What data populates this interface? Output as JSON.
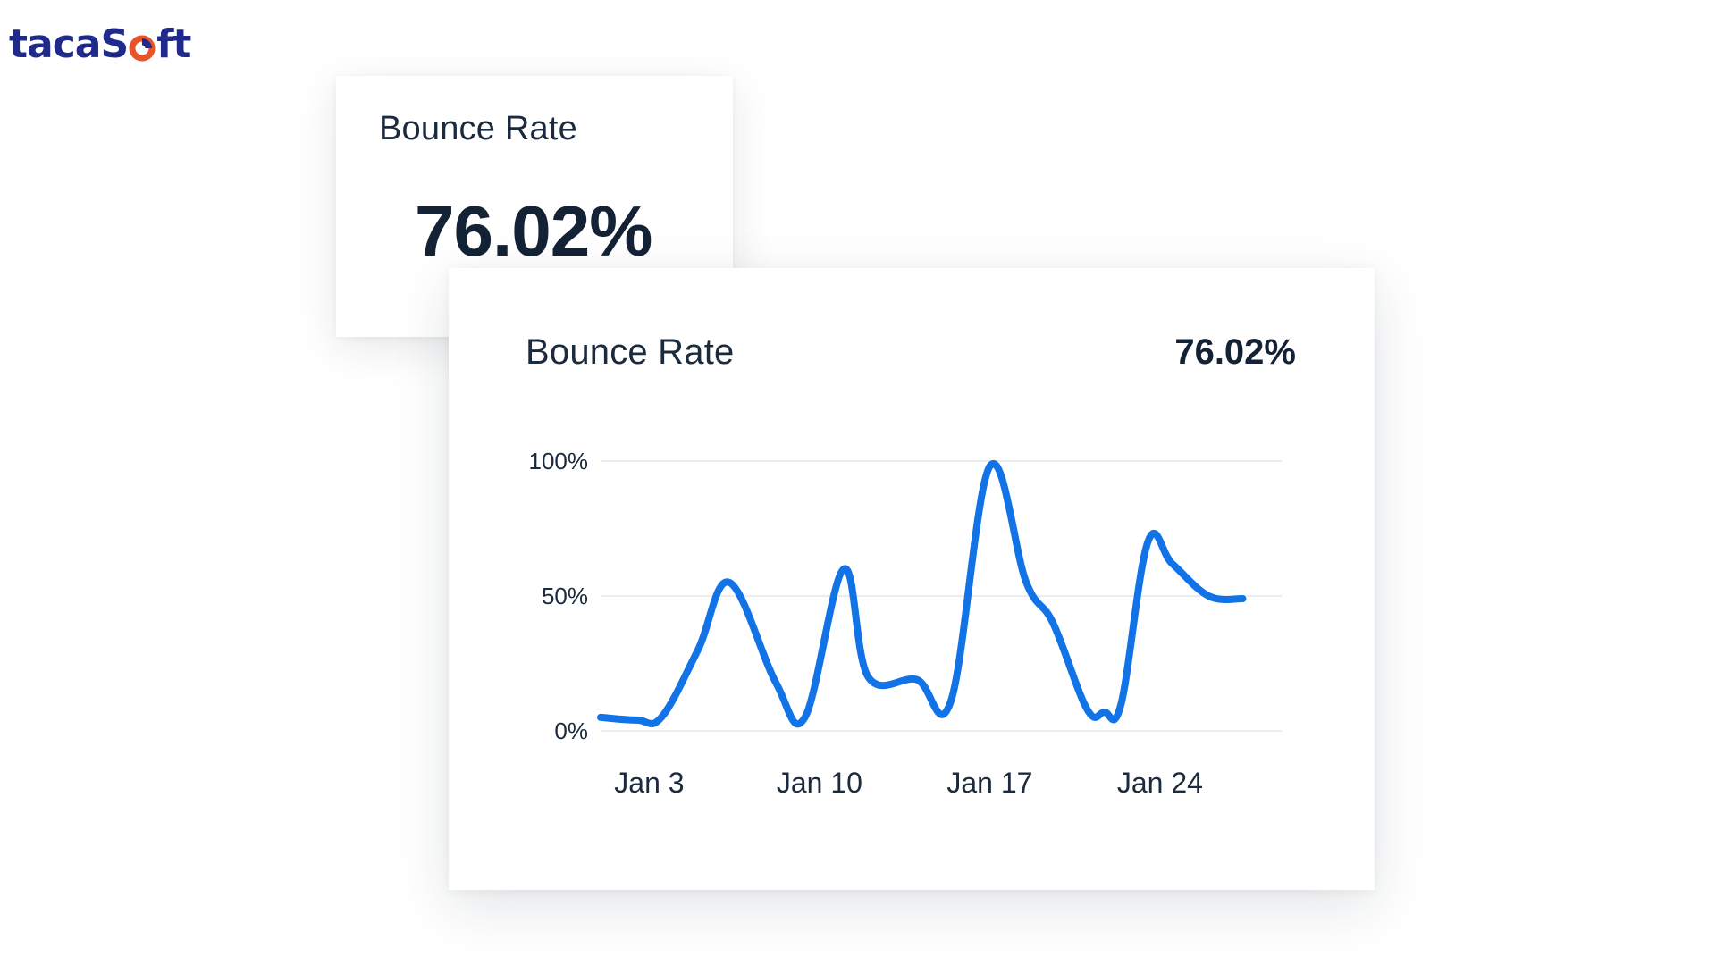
{
  "brand": {
    "name_prefix": "taca",
    "name_s": "S",
    "name_suffix": "ft",
    "colors": {
      "primary": "#1f2a8a",
      "accent": "#e8542a"
    }
  },
  "summary_card": {
    "title": "Bounce Rate",
    "value": "76.02%"
  },
  "chart_card": {
    "title": "Bounce Rate",
    "value": "76.02%"
  },
  "chart_data": {
    "type": "line",
    "title": "Bounce Rate",
    "xlabel": "",
    "ylabel": "",
    "ylim": [
      0,
      100
    ],
    "yticks": [
      0,
      50,
      100
    ],
    "ytick_labels": [
      "0%",
      "50%",
      "100%"
    ],
    "xlim": [
      1,
      29
    ],
    "xticks": [
      3,
      10,
      17,
      24
    ],
    "xtick_labels": [
      "Jan 3",
      "Jan 10",
      "Jan 17",
      "Jan 24"
    ],
    "grid": true,
    "color": "#1273e6",
    "series": [
      {
        "name": "Bounce Rate",
        "x": [
          1,
          2.5,
          3.5,
          5,
          6.3,
          8.2,
          9.4,
          11,
          12,
          14,
          15.4,
          17,
          18.5,
          19.6,
          21,
          21.7,
          22.4,
          23.5,
          24.5,
          26,
          27.4
        ],
        "values": [
          5,
          4,
          5,
          30,
          55,
          18,
          5,
          60,
          20,
          19,
          11,
          98,
          55,
          40,
          8,
          7,
          10,
          70,
          62,
          50,
          49
        ]
      }
    ]
  }
}
